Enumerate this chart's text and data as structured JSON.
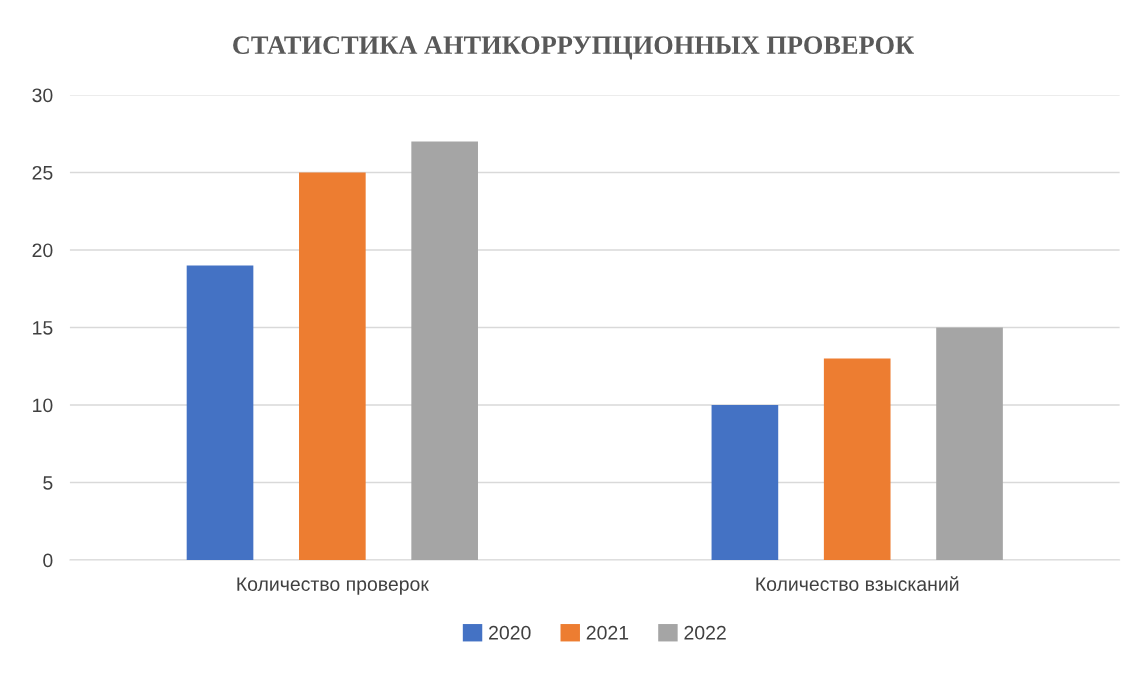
{
  "chart_data": {
    "type": "bar",
    "title": "СТАТИСТИКА АНТИКОРРУПЦИОННЫХ ПРОВЕРОК",
    "categories": [
      "Количество проверок",
      "Количество взысканий"
    ],
    "series": [
      {
        "name": "2020",
        "color": "#4472c4",
        "values": [
          19,
          10
        ]
      },
      {
        "name": "2021",
        "color": "#ed7d31",
        "values": [
          25,
          13
        ]
      },
      {
        "name": "2022",
        "color": "#a5a5a5",
        "values": [
          27,
          15
        ]
      }
    ],
    "ylim": [
      0,
      30
    ],
    "yticks": [
      0,
      5,
      10,
      15,
      20,
      25,
      30
    ],
    "grid": "y",
    "legend": "bottom"
  }
}
